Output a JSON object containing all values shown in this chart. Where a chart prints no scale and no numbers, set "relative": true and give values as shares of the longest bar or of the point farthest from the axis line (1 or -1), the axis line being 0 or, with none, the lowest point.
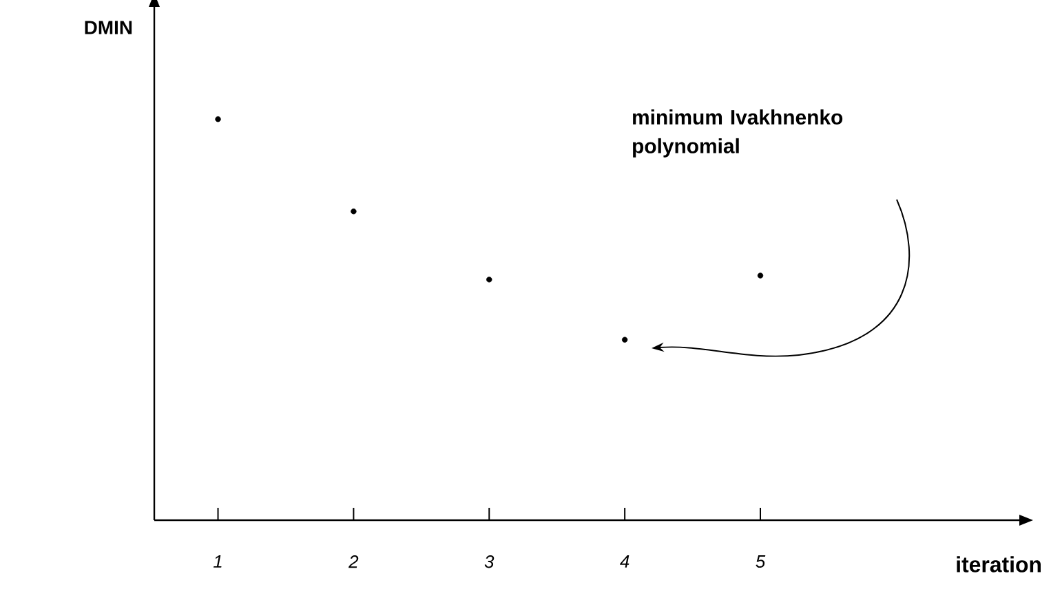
{
  "chart_data": {
    "type": "scatter",
    "relative": true,
    "ylabel": "DMIN",
    "xlabel": "iteration",
    "x": [
      1,
      2,
      3,
      4,
      5
    ],
    "values": [
      1,
      0.77,
      0.6,
      0.45,
      0.61
    ],
    "color": "#000000",
    "marker": "circle",
    "xlim": [
      0.53,
      6.91
    ],
    "xticks": [
      1,
      2,
      3,
      4,
      5
    ],
    "annotations": [
      "minimum Ivakhnenko polynomial"
    ]
  }
}
